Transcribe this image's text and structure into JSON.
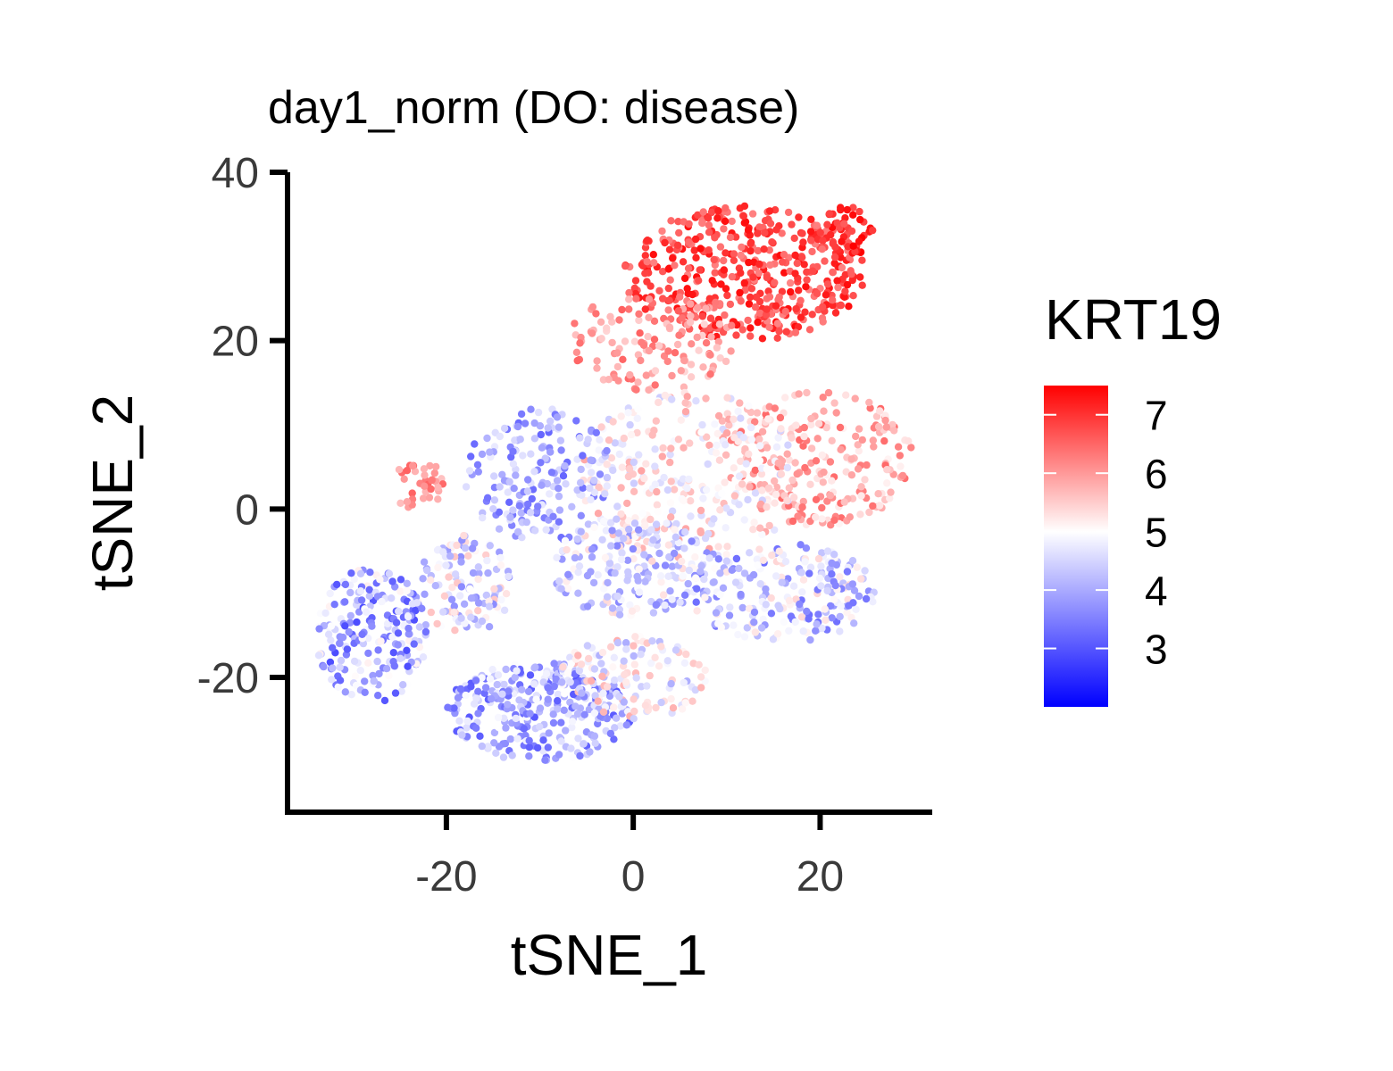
{
  "chart_data": {
    "type": "scatter",
    "title": "day1_norm (DO: disease)",
    "xlabel": "tSNE_1",
    "ylabel": "tSNE_2",
    "xlim": [
      -37,
      32
    ],
    "ylim": [
      -36,
      40
    ],
    "x_ticks": [
      -20,
      0,
      20
    ],
    "y_ticks": [
      40,
      20,
      0,
      -20
    ],
    "x_tick_labels": [
      "-20",
      "0",
      "20"
    ],
    "y_tick_labels": [
      "40",
      "20",
      "0",
      "-20"
    ],
    "grid": false,
    "legend": {
      "title": "KRT19",
      "position": "right",
      "type": "colorbar",
      "min": 2.0,
      "max": 7.5,
      "ticks": [
        7,
        6,
        5,
        4,
        3
      ],
      "tick_labels": [
        "7",
        "6",
        "5",
        "4",
        "3"
      ],
      "colors": {
        "low": "#0000ff",
        "mid": "#ffffff",
        "high": "#ff0000"
      },
      "midpoint": 5
    },
    "regions": [
      {
        "cx": 12,
        "cy": 28,
        "rx": 13,
        "ry": 8,
        "value_min": 6.2,
        "value_max": 7.4,
        "n": 460
      },
      {
        "cx": 23,
        "cy": 33,
        "rx": 3,
        "ry": 3,
        "value_min": 6.6,
        "value_max": 7.5,
        "n": 50
      },
      {
        "cx": 2,
        "cy": 20,
        "rx": 9,
        "ry": 6,
        "value_min": 5.4,
        "value_max": 6.6,
        "n": 130
      },
      {
        "cx": 20,
        "cy": 6,
        "rx": 10,
        "ry": 8,
        "value_min": 5.1,
        "value_max": 6.5,
        "n": 220
      },
      {
        "cx": 6,
        "cy": 4,
        "rx": 12,
        "ry": 10,
        "value_min": 4.4,
        "value_max": 5.9,
        "n": 300
      },
      {
        "cx": -10,
        "cy": 4,
        "rx": 8,
        "ry": 8,
        "value_min": 3.2,
        "value_max": 4.8,
        "n": 180
      },
      {
        "cx": 0,
        "cy": -7,
        "rx": 9,
        "ry": 6,
        "value_min": 3.5,
        "value_max": 5.4,
        "n": 200
      },
      {
        "cx": 16,
        "cy": -10,
        "rx": 10,
        "ry": 6,
        "value_min": 3.3,
        "value_max": 5.4,
        "n": 220
      },
      {
        "cx": -23,
        "cy": 3,
        "rx": 3,
        "ry": 3,
        "value_min": 5.6,
        "value_max": 6.6,
        "n": 35
      },
      {
        "cx": -28,
        "cy": -15,
        "rx": 6,
        "ry": 8,
        "value_min": 2.9,
        "value_max": 5.2,
        "n": 220
      },
      {
        "cx": -18,
        "cy": -9,
        "rx": 5,
        "ry": 6,
        "value_min": 3.6,
        "value_max": 5.6,
        "n": 120
      },
      {
        "cx": -10,
        "cy": -24,
        "rx": 10,
        "ry": 6,
        "value_min": 3.0,
        "value_max": 5.0,
        "n": 300
      },
      {
        "cx": 0,
        "cy": -20,
        "rx": 8,
        "ry": 5,
        "value_min": 4.0,
        "value_max": 5.8,
        "n": 140
      }
    ]
  }
}
